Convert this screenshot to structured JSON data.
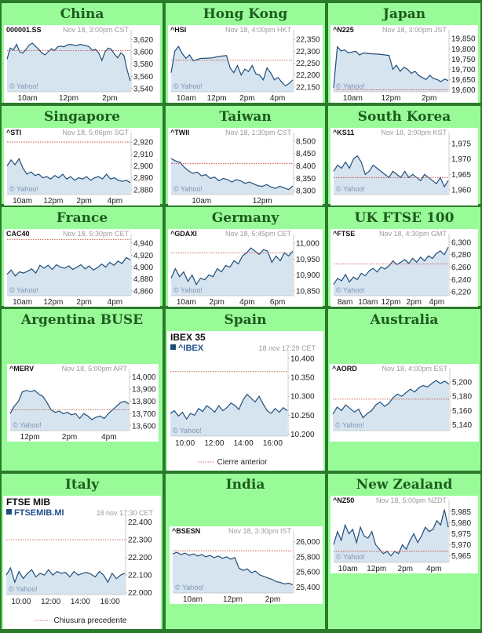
{
  "colors": {
    "cell_bg": "#98fb98",
    "grid_line": "#2a7a2a",
    "title_text": "#1e5c1e",
    "plot_fill": "#d6e4f0",
    "plot_line": "#1f4e79",
    "prev_close": "#c0392b"
  },
  "chart_data": [
    {
      "region": "China",
      "type": "area",
      "symbol": "000001.SS",
      "stamp": "Nov 18, 3:00pm CST",
      "xticks": [
        "10am",
        "12pm",
        "2pm"
      ],
      "yticks": [
        "3,620",
        "3,600",
        "3,580",
        "3,560",
        "3,540"
      ],
      "ylim": [
        3535,
        3628
      ],
      "prev_close": 3602,
      "watermark": "© Yahoo!",
      "values": [
        3588,
        3606,
        3603,
        3612,
        3600,
        3598,
        3604,
        3611,
        3614,
        3609,
        3604,
        3598,
        3595,
        3600,
        3605,
        3602,
        3608,
        3609,
        3608,
        3611,
        3612,
        3611,
        3610,
        3612,
        3611,
        3610,
        3608,
        3602,
        3604,
        3598,
        3586,
        3600,
        3606,
        3604,
        3596,
        3590,
        3598,
        3594,
        3570,
        3553
      ]
    },
    {
      "region": "Hong Kong",
      "type": "area",
      "symbol": "^HSI",
      "stamp": "Nov 18, 4:00pm HKT",
      "xticks": [
        "10am",
        "12pm",
        "2pm",
        "4pm"
      ],
      "yticks": [
        "22,350",
        "22,300",
        "22,250",
        "22,200",
        "22,150"
      ],
      "ylim": [
        22130,
        22370
      ],
      "prev_close": 22262,
      "watermark": "© Yahoo!",
      "values": [
        22210,
        22300,
        22320,
        22290,
        22270,
        22285,
        22260,
        22265,
        22270,
        22270,
        22271,
        22272,
        22275,
        22278,
        22280,
        22282,
        22230,
        22210,
        22240,
        22200,
        22225,
        22215,
        22240,
        22205,
        22200,
        22180,
        22230,
        22210,
        22180,
        22190,
        22170,
        22155,
        22165,
        22180
      ]
    },
    {
      "region": "Japan",
      "type": "area",
      "symbol": "^N225",
      "stamp": "Nov 18, 3:00pm JST",
      "xticks": [
        "10am",
        "12pm",
        "2pm"
      ],
      "yticks": [
        "19,850",
        "19,800",
        "19,750",
        "19,700",
        "19,650",
        "19,600"
      ],
      "ylim": [
        19590,
        19870
      ],
      "prev_close": 19600,
      "watermark": "© Yahoo!",
      "values": [
        19610,
        19810,
        19790,
        19795,
        19780,
        19785,
        19788,
        19770,
        19780,
        19778,
        19776,
        19775,
        19774,
        19772,
        19770,
        19768,
        19700,
        19720,
        19690,
        19710,
        19700,
        19680,
        19690,
        19670,
        19660,
        19650,
        19670,
        19655,
        19650,
        19640,
        19652,
        19645
      ]
    },
    {
      "region": "Singapore",
      "type": "area",
      "symbol": "^STI",
      "stamp": "Nov 18, 5:06pm SGT",
      "xticks": [
        "10am",
        "12pm",
        "2pm",
        "4pm"
      ],
      "yticks": [
        "2,920",
        "2,910",
        "2,900",
        "2,890",
        "2,880"
      ],
      "ylim": [
        2876,
        2924
      ],
      "prev_close": 2920,
      "watermark": "© Yahoo!",
      "values": [
        2900,
        2905,
        2901,
        2906,
        2898,
        2893,
        2895,
        2892,
        2893,
        2890,
        2891,
        2889,
        2892,
        2890,
        2893,
        2889,
        2891,
        2888,
        2890,
        2889,
        2891,
        2888,
        2890,
        2891,
        2889,
        2893,
        2889,
        2890,
        2888,
        2887,
        2888,
        2886
      ]
    },
    {
      "region": "Taiwan",
      "type": "area",
      "symbol": "^TWII",
      "stamp": "Nov 18, 1:30pm CST",
      "xticks": [
        "10am",
        "12pm"
      ],
      "yticks": [
        "8,500",
        "8,450",
        "8,400",
        "8,350",
        "8,300"
      ],
      "ylim": [
        8285,
        8515
      ],
      "prev_close": 8410,
      "watermark": "© Yahoo!",
      "values": [
        8430,
        8420,
        8415,
        8395,
        8380,
        8370,
        8375,
        8360,
        8365,
        8350,
        8355,
        8340,
        8350,
        8345,
        8335,
        8345,
        8340,
        8330,
        8335,
        8328,
        8320,
        8318,
        8325,
        8315,
        8310,
        8318,
        8312,
        8305,
        8320
      ]
    },
    {
      "region": "South Korea",
      "type": "area",
      "symbol": "^KS11",
      "stamp": "Nov 18, 3:00pm KST",
      "xticks": [],
      "yticks": [
        "1,975",
        "1,970",
        "1,965",
        "1,960"
      ],
      "ylim": [
        1958.5,
        1977
      ],
      "prev_close": 1964,
      "watermark": "© Yahoo!",
      "values": [
        1966,
        1968,
        1967,
        1969,
        1967,
        1970,
        1971,
        1969,
        1965,
        1966,
        1968,
        1967,
        1966,
        1965,
        1964,
        1966,
        1965,
        1964,
        1966,
        1964,
        1965,
        1964,
        1963,
        1965,
        1964,
        1963,
        1962,
        1964,
        1961,
        1963
      ]
    },
    {
      "region": "France",
      "type": "area",
      "symbol": "CAC40",
      "stamp": "Nov 18, 5:30pm CET",
      "xticks": [
        "10am",
        "12pm",
        "2pm",
        "4pm"
      ],
      "yticks": [
        "4,940",
        "4,920",
        "4,900",
        "4,880",
        "4,860"
      ],
      "ylim": [
        4852,
        4948
      ],
      "prev_close": 4946,
      "watermark": "© Yahoo!",
      "values": [
        4888,
        4895,
        4885,
        4892,
        4890,
        4893,
        4897,
        4890,
        4903,
        4898,
        4903,
        4896,
        4904,
        4900,
        4898,
        4902,
        4896,
        4900,
        4904,
        4897,
        4902,
        4895,
        4899,
        4905,
        4900,
        4908,
        4903,
        4910,
        4906,
        4916,
        4912
      ]
    },
    {
      "region": "Germany",
      "type": "area",
      "symbol": "^GDAXI",
      "stamp": "Nov 18, 5:45pm CET",
      "xticks": [
        "10am",
        "2pm",
        "4pm",
        "6pm"
      ],
      "yticks": [
        "11,000",
        "10,950",
        "10,900",
        "10,850"
      ],
      "ylim": [
        10835,
        11015
      ],
      "prev_close": 10970,
      "watermark": "© Yahoo!",
      "values": [
        10890,
        10920,
        10895,
        10910,
        10880,
        10900,
        10870,
        10890,
        10885,
        10900,
        10895,
        10920,
        10910,
        10930,
        10925,
        10945,
        10935,
        10960,
        10970,
        10985,
        10975,
        10965,
        10980,
        10975,
        10940,
        10960,
        10945,
        10970,
        10960,
        10975
      ]
    },
    {
      "region": "UK FTSE 100",
      "type": "area",
      "symbol": "^FTSE",
      "stamp": "Nov 18, 4:30pm GMT",
      "xticks": [
        "8am",
        "10am",
        "12pm",
        "2pm",
        "4pm"
      ],
      "yticks": [
        "6,300",
        "6,280",
        "6,260",
        "6,240",
        "6,220"
      ],
      "ylim": [
        6214,
        6306
      ],
      "prev_close": 6265,
      "watermark": "© Yahoo!",
      "values": [
        6232,
        6242,
        6238,
        6248,
        6236,
        6244,
        6240,
        6250,
        6246,
        6254,
        6258,
        6252,
        6260,
        6257,
        6262,
        6270,
        6264,
        6268,
        6272,
        6266,
        6274,
        6268,
        6276,
        6270,
        6278,
        6274,
        6282,
        6286,
        6280,
        6292
      ]
    },
    {
      "region": "Argentina BUSE",
      "type": "area",
      "symbol": "^MERV",
      "stamp": "Nov 18, 5:00pm ART",
      "xticks": [
        "12pm",
        "2pm",
        "4pm"
      ],
      "yticks": [
        "14,000",
        "13,900",
        "13,800",
        "13,700",
        "13,600"
      ],
      "ylim": [
        13560,
        14030
      ],
      "prev_close": 13730,
      "watermark": "© Yahoo!",
      "values": [
        13700,
        13760,
        13800,
        13880,
        13890,
        13880,
        13890,
        13860,
        13840,
        13790,
        13730,
        13710,
        13720,
        13700,
        13710,
        13690,
        13700,
        13660,
        13700,
        13680,
        13650,
        13670,
        13680,
        13660,
        13700,
        13730,
        13760,
        13790,
        13800,
        13780
      ]
    },
    {
      "region": "Spain",
      "type": "area",
      "style": "large",
      "title": "IBEX 35",
      "symbol": "^IBEX",
      "stamp": "18 nov 17:29 CET",
      "xticks": [
        "10:00",
        "12:00",
        "14:00",
        "16:00"
      ],
      "yticks": [
        "10.400",
        "10.350",
        "10.300",
        "10.250",
        "10.200"
      ],
      "ylim": [
        10195,
        10410
      ],
      "prev_close": 10365,
      "legend": "Cierre anterior",
      "watermark": "© Yahoo!",
      "values": [
        10255,
        10262,
        10248,
        10258,
        10240,
        10255,
        10250,
        10268,
        10260,
        10275,
        10268,
        10258,
        10275,
        10262,
        10270,
        10282,
        10276,
        10265,
        10290,
        10305,
        10295,
        10285,
        10300,
        10280,
        10262,
        10255,
        10268,
        10258,
        10270,
        10262
      ]
    },
    {
      "region": "Australia",
      "type": "area",
      "symbol": "^AORD",
      "stamp": "Nov 18, 4:00pm EST",
      "xticks": [],
      "yticks": [
        "5,200",
        "5,180",
        "5,160",
        "5,140"
      ],
      "ylim": [
        5132,
        5212
      ],
      "prev_close": 5176,
      "watermark": "© Yahoo!",
      "values": [
        5155,
        5165,
        5160,
        5168,
        5163,
        5158,
        5162,
        5150,
        5156,
        5160,
        5168,
        5172,
        5166,
        5170,
        5178,
        5183,
        5180,
        5185,
        5190,
        5186,
        5192,
        5195,
        5193,
        5198,
        5202,
        5198,
        5201,
        5197
      ]
    },
    {
      "region": "Italy",
      "type": "area",
      "style": "large",
      "title": "FTSE MIB",
      "symbol": "FTSEMIB.MI",
      "stamp": "18 nov 17:30 CET",
      "xticks": [
        "10:00",
        "12:00",
        "14:00",
        "16:00"
      ],
      "yticks": [
        "22.400",
        "22.300",
        "22.200",
        "22.100",
        "22.000"
      ],
      "ylim": [
        21990,
        22415
      ],
      "prev_close": 22300,
      "legend": "Chiusura precedente",
      "watermark": "© Yahoo!",
      "values": [
        22100,
        22140,
        22060,
        22120,
        22080,
        22110,
        22130,
        22090,
        22110,
        22100,
        22130,
        22100,
        22120,
        22110,
        22115,
        22090,
        22120,
        22100,
        22110,
        22115,
        22105,
        22090,
        22120,
        22100,
        22060,
        22110,
        22080,
        22100,
        22110
      ]
    },
    {
      "region": "India",
      "type": "area",
      "symbol": "^BSESN",
      "stamp": "Nov 18, 3:30pm IST",
      "xticks": [
        "10am",
        "12pm",
        "2pm"
      ],
      "yticks": [
        "26,000",
        "25,800",
        "25,600",
        "25,400"
      ],
      "ylim": [
        25320,
        26080
      ],
      "prev_close": 25880,
      "watermark": "© Yahoo!",
      "values": [
        25840,
        25860,
        25830,
        25850,
        25820,
        25840,
        25810,
        25830,
        25800,
        25820,
        25790,
        25810,
        25780,
        25800,
        25770,
        25790,
        25650,
        25620,
        25640,
        25590,
        25610,
        25560,
        25540,
        25520,
        25500,
        25470,
        25460,
        25440,
        25450,
        25430
      ]
    },
    {
      "region": "New Zealand",
      "type": "area",
      "symbol": "^NZ50",
      "stamp": "Nov 18, 5:00pm NZDT",
      "xticks": [
        "10am",
        "12pm",
        "2pm",
        "4pm"
      ],
      "yticks": [
        "5,985",
        "5,980",
        "5,975",
        "5,970",
        "5,965"
      ],
      "ylim": [
        5962,
        5988
      ],
      "prev_close": 5967,
      "watermark": "© Yahoo!",
      "values": [
        5970,
        5976,
        5972,
        5979,
        5975,
        5977,
        5971,
        5978,
        5974,
        5973,
        5976,
        5970,
        5968,
        5966,
        5967,
        5965,
        5967,
        5966,
        5970,
        5968,
        5972,
        5975,
        5971,
        5974,
        5978,
        5976,
        5977,
        5981,
        5979,
        5986,
        5978
      ]
    }
  ]
}
